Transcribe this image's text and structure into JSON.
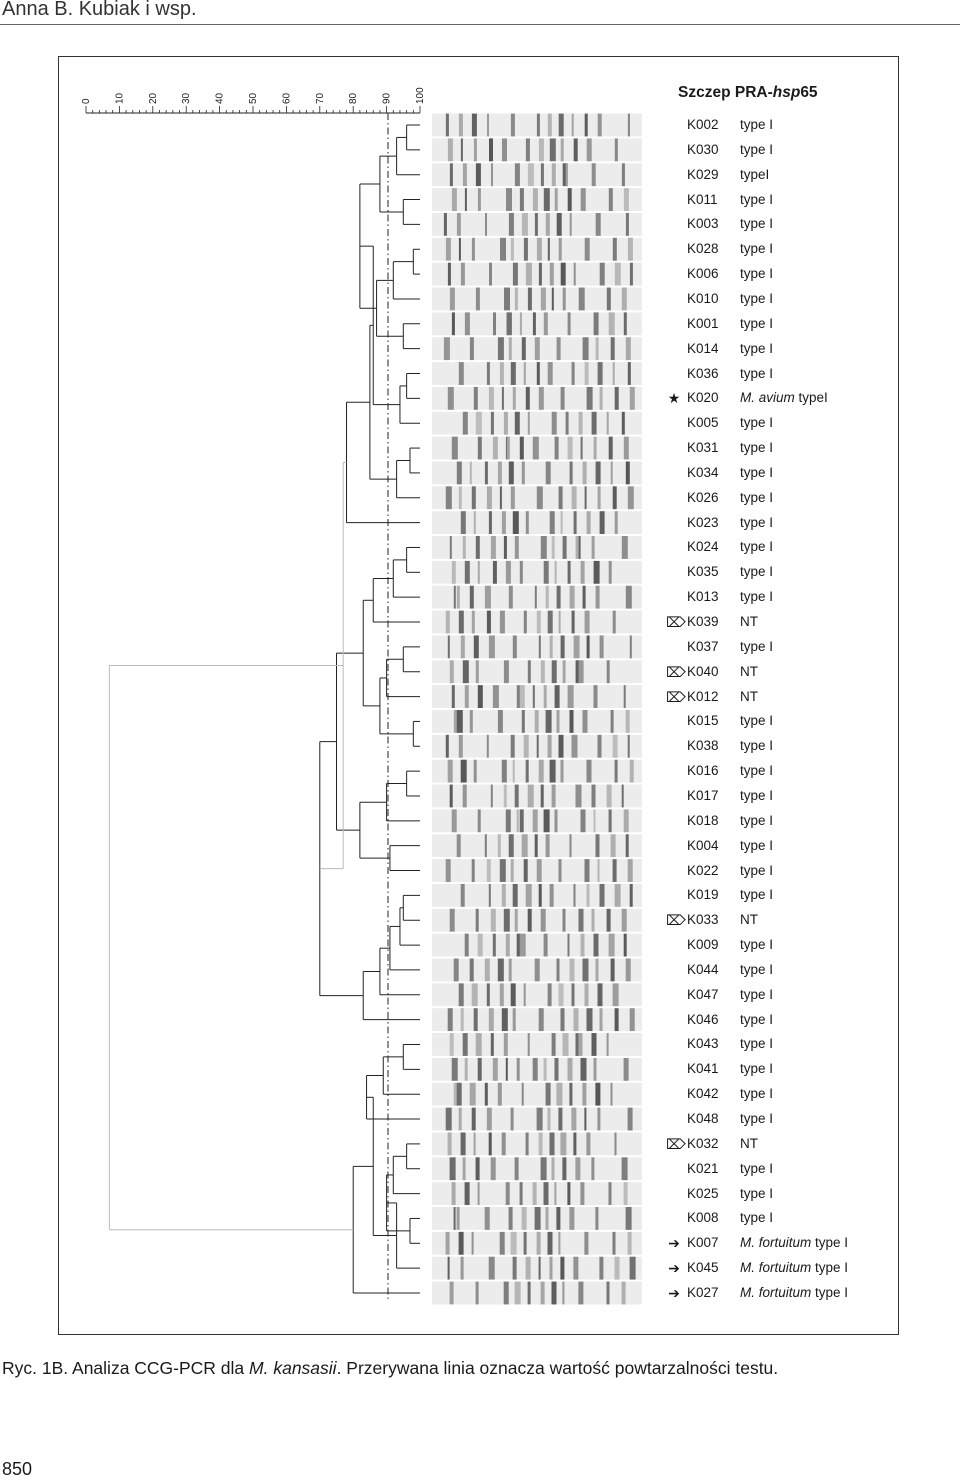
{
  "header": {
    "author": "Anna B. Kubiak i wsp."
  },
  "figure": {
    "column_header_prefix": "Szczep PRA-",
    "column_header_italic": "hsp",
    "column_header_suffix": "65",
    "scale_ticks": [
      "0",
      "10",
      "20",
      "30",
      "40",
      "50",
      "60",
      "70",
      "80",
      "90",
      "100"
    ],
    "rows": [
      {
        "id": "K002",
        "prefix": "",
        "type": "type I",
        "marker": ""
      },
      {
        "id": "K030",
        "prefix": "",
        "type": "type I",
        "marker": ""
      },
      {
        "id": "K029",
        "prefix": "",
        "type": "typeI",
        "marker": ""
      },
      {
        "id": "K011",
        "prefix": "",
        "type": "type I",
        "marker": ""
      },
      {
        "id": "K003",
        "prefix": "",
        "type": "type I",
        "marker": ""
      },
      {
        "id": "K028",
        "prefix": "",
        "type": "type I",
        "marker": ""
      },
      {
        "id": "K006",
        "prefix": "",
        "type": "type I",
        "marker": ""
      },
      {
        "id": "K010",
        "prefix": "",
        "type": "type I",
        "marker": ""
      },
      {
        "id": "K001",
        "prefix": "",
        "type": "type I",
        "marker": ""
      },
      {
        "id": "K014",
        "prefix": "",
        "type": "type I",
        "marker": ""
      },
      {
        "id": "K036",
        "prefix": "",
        "type": "type I",
        "marker": ""
      },
      {
        "id": "K020",
        "prefix": "M. avium",
        "type": " typeI",
        "marker": "★"
      },
      {
        "id": "K005",
        "prefix": "",
        "type": "type I",
        "marker": ""
      },
      {
        "id": "K031",
        "prefix": "",
        "type": "type I",
        "marker": ""
      },
      {
        "id": "K034",
        "prefix": "",
        "type": "type I",
        "marker": ""
      },
      {
        "id": "K026",
        "prefix": "",
        "type": "type I",
        "marker": ""
      },
      {
        "id": "K023",
        "prefix": "",
        "type": "type I",
        "marker": ""
      },
      {
        "id": "K024",
        "prefix": "",
        "type": "type I",
        "marker": ""
      },
      {
        "id": "K035",
        "prefix": "",
        "type": "type I",
        "marker": ""
      },
      {
        "id": "K013",
        "prefix": "",
        "type": "type I",
        "marker": ""
      },
      {
        "id": "K039",
        "prefix": "",
        "type": "NT",
        "marker": "⌦"
      },
      {
        "id": "K037",
        "prefix": "",
        "type": "type I",
        "marker": ""
      },
      {
        "id": "K040",
        "prefix": "",
        "type": "NT",
        "marker": "⌦"
      },
      {
        "id": "K012",
        "prefix": "",
        "type": "NT",
        "marker": "⌦"
      },
      {
        "id": "K015",
        "prefix": "",
        "type": "type I",
        "marker": ""
      },
      {
        "id": "K038",
        "prefix": "",
        "type": "type I",
        "marker": ""
      },
      {
        "id": "K016",
        "prefix": "",
        "type": "type I",
        "marker": ""
      },
      {
        "id": "K017",
        "prefix": "",
        "type": "type I",
        "marker": ""
      },
      {
        "id": "K018",
        "prefix": "",
        "type": "type I",
        "marker": ""
      },
      {
        "id": "K004",
        "prefix": "",
        "type": "type I",
        "marker": ""
      },
      {
        "id": "K022",
        "prefix": "",
        "type": "type I",
        "marker": ""
      },
      {
        "id": "K019",
        "prefix": "",
        "type": "type I",
        "marker": ""
      },
      {
        "id": "K033",
        "prefix": "",
        "type": "NT",
        "marker": "⌦"
      },
      {
        "id": "K009",
        "prefix": "",
        "type": "type I",
        "marker": ""
      },
      {
        "id": "K044",
        "prefix": "",
        "type": "type I",
        "marker": ""
      },
      {
        "id": "K047",
        "prefix": "",
        "type": "type I",
        "marker": ""
      },
      {
        "id": "K046",
        "prefix": "",
        "type": "type I",
        "marker": ""
      },
      {
        "id": "K043",
        "prefix": "",
        "type": "type I",
        "marker": ""
      },
      {
        "id": "K041",
        "prefix": "",
        "type": "type I",
        "marker": ""
      },
      {
        "id": "K042",
        "prefix": "",
        "type": "type I",
        "marker": ""
      },
      {
        "id": "K048",
        "prefix": "",
        "type": "type I",
        "marker": ""
      },
      {
        "id": "K032",
        "prefix": "",
        "type": "NT",
        "marker": "⌦"
      },
      {
        "id": "K021",
        "prefix": "",
        "type": "type I",
        "marker": ""
      },
      {
        "id": "K025",
        "prefix": "",
        "type": "type I",
        "marker": ""
      },
      {
        "id": "K008",
        "prefix": "",
        "type": "type I",
        "marker": ""
      },
      {
        "id": "K007",
        "prefix": "M. fortuitum",
        "type": " type I",
        "marker": "➔"
      },
      {
        "id": "K045",
        "prefix": "M. fortuitum",
        "type": " type I",
        "marker": "➔"
      },
      {
        "id": "K027",
        "prefix": "M. fortuitum",
        "type": " type I",
        "marker": "➔"
      }
    ]
  },
  "caption": {
    "part1": "Ryc. 1B. Analiza CCG-PCR dla ",
    "italic": "M. kansasii",
    "part2": ". Przerywana linia oznacza wartość powtarzalności testu."
  },
  "page_number": "850"
}
